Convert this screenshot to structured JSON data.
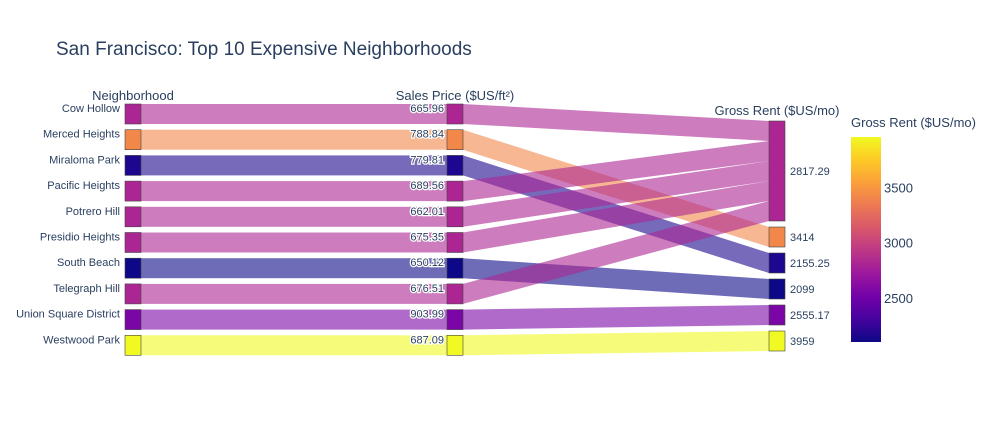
{
  "chart_data": {
    "type": "parallel-categories",
    "title": "San Francisco: Top 10 Expensive Neighborhoods",
    "dimensions": [
      "Neighborhood",
      "Sales Price ($US/ft²)",
      "Gross Rent ($US/mo)"
    ],
    "rows": [
      {
        "neighborhood": "Cow Hollow",
        "sale_price": "665.96",
        "gross_rent": "2817.29",
        "rent_value": 2817.29
      },
      {
        "neighborhood": "Merced Heights",
        "sale_price": "788.84",
        "gross_rent": "3414",
        "rent_value": 3414
      },
      {
        "neighborhood": "Miraloma Park",
        "sale_price": "779.81",
        "gross_rent": "2155.25",
        "rent_value": 2155.25
      },
      {
        "neighborhood": "Pacific Heights",
        "sale_price": "689.56",
        "gross_rent": "2817.29",
        "rent_value": 2817.29
      },
      {
        "neighborhood": "Potrero Hill",
        "sale_price": "662.01",
        "gross_rent": "2817.29",
        "rent_value": 2817.29
      },
      {
        "neighborhood": "Presidio Heights",
        "sale_price": "675.35",
        "gross_rent": "2817.29",
        "rent_value": 2817.29
      },
      {
        "neighborhood": "South Beach",
        "sale_price": "650.12",
        "gross_rent": "2099",
        "rent_value": 2099
      },
      {
        "neighborhood": "Telegraph Hill",
        "sale_price": "676.51",
        "gross_rent": "2817.29",
        "rent_value": 2817.29
      },
      {
        "neighborhood": "Union Square District",
        "sale_price": "903.99",
        "gross_rent": "2555.17",
        "rent_value": 2555.17
      },
      {
        "neighborhood": "Westwood Park",
        "sale_price": "687.09",
        "gross_rent": "3959",
        "rent_value": 3959
      }
    ],
    "rent_categories": [
      "2817.29",
      "3414",
      "2155.25",
      "2099",
      "2555.17",
      "3959"
    ],
    "colorbar": {
      "title": "Gross Rent ($US/mo)",
      "ticks": [
        "3500",
        "3000",
        "2500"
      ],
      "tick_values": [
        3500,
        3000,
        2500
      ],
      "range": [
        2099,
        3959
      ]
    },
    "colorscale": [
      "#0d0887",
      "#46039f",
      "#7201a8",
      "#9c179e",
      "#bd3786",
      "#d8576b",
      "#ed7953",
      "#fb9f3a",
      "#fdca26",
      "#f0f921"
    ]
  }
}
